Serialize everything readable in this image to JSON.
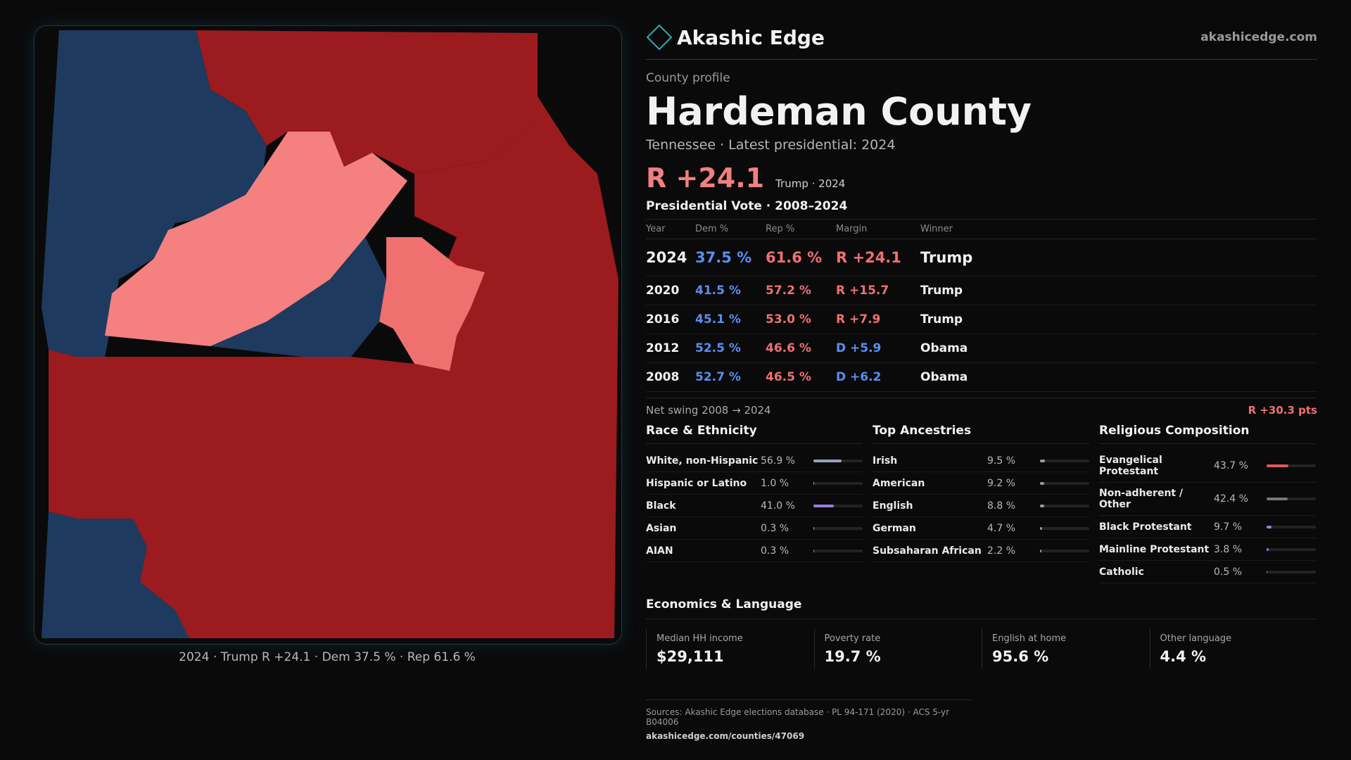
{
  "map": {
    "caption": "2024 · Trump R +24.1 · Dem 37.5 % · Rep 61.6 %",
    "colors": {
      "strong_dem": "#1e3a5f",
      "strong_rep": "#9b1b1e",
      "lean_rep": "#f48080",
      "mid_rep": "#f07070"
    }
  },
  "header": {
    "brand": "Akashic Edge",
    "site": "akashicedge.com",
    "logo_icon": "diamond-icon"
  },
  "profile": {
    "eyebrow": "County profile",
    "county": "Hardeman County",
    "subline": "Tennessee · Latest presidential: 2024",
    "margin": "R +24.1",
    "margin_sub": "Trump · 2024"
  },
  "votes": {
    "title": "Presidential Vote · 2008–2024",
    "headers": [
      "Year",
      "Dem %",
      "Rep %",
      "Margin",
      "Winner"
    ],
    "rows": [
      {
        "year": "2024",
        "dem": "37.5 %",
        "rep": "61.6 %",
        "margin": "R +24.1",
        "winner": "Trump"
      },
      {
        "year": "2020",
        "dem": "41.5 %",
        "rep": "57.2 %",
        "margin": "R +15.7",
        "winner": "Trump"
      },
      {
        "year": "2016",
        "dem": "45.1 %",
        "rep": "53.0 %",
        "margin": "R +7.9",
        "winner": "Trump"
      },
      {
        "year": "2012",
        "dem": "52.5 %",
        "rep": "46.6 %",
        "margin": "D +5.9",
        "winner": "Obama"
      },
      {
        "year": "2008",
        "dem": "52.7 %",
        "rep": "46.5 %",
        "margin": "D +6.2",
        "winner": "Obama"
      }
    ],
    "swing_label": "Net swing 2008 → 2024",
    "swing_value": "R +30.3 pts"
  },
  "race": {
    "title": "Race & Ethnicity",
    "items": [
      {
        "label": "White, non-Hispanic",
        "value": "56.9 %",
        "pct": 56.9,
        "color": "#9aa0b8"
      },
      {
        "label": "Hispanic or Latino",
        "value": "1.0 %",
        "pct": 1.0,
        "color": "#c8a040"
      },
      {
        "label": "Black",
        "value": "41.0 %",
        "pct": 41.0,
        "color": "#9a7be0"
      },
      {
        "label": "Asian",
        "value": "0.3 %",
        "pct": 0.3,
        "color": "#6cc0a0"
      },
      {
        "label": "AIAN",
        "value": "0.3 %",
        "pct": 0.3,
        "color": "#808080"
      }
    ]
  },
  "ancestry": {
    "title": "Top Ancestries",
    "items": [
      {
        "label": "Irish",
        "value": "9.5 %",
        "pct": 9.5,
        "color": "#9a9a9a"
      },
      {
        "label": "American",
        "value": "9.2 %",
        "pct": 9.2,
        "color": "#9a9a9a"
      },
      {
        "label": "English",
        "value": "8.8 %",
        "pct": 8.8,
        "color": "#9a9a9a"
      },
      {
        "label": "German",
        "value": "4.7 %",
        "pct": 4.7,
        "color": "#9a9a9a"
      },
      {
        "label": "Subsaharan African",
        "value": "2.2 %",
        "pct": 2.2,
        "color": "#9a9a9a"
      }
    ]
  },
  "religion": {
    "title": "Religious Composition",
    "items": [
      {
        "label": "Evangelical Protestant",
        "value": "43.7 %",
        "pct": 43.7,
        "color": "#e05a5a"
      },
      {
        "label": "Non-adherent / Other",
        "value": "42.4 %",
        "pct": 42.4,
        "color": "#777"
      },
      {
        "label": "Black Protestant",
        "value": "9.7 %",
        "pct": 9.7,
        "color": "#9a7be0"
      },
      {
        "label": "Mainline Protestant",
        "value": "3.8 %",
        "pct": 3.8,
        "color": "#5b8ef0"
      },
      {
        "label": "Catholic",
        "value": "0.5 %",
        "pct": 0.5,
        "color": "#777"
      }
    ]
  },
  "econ": {
    "title": "Economics & Language",
    "items": [
      {
        "label": "Median HH income",
        "value": "$29,111"
      },
      {
        "label": "Poverty rate",
        "value": "19.7 %"
      },
      {
        "label": "English at home",
        "value": "95.6 %"
      },
      {
        "label": "Other language",
        "value": "4.4 %"
      }
    ]
  },
  "sources": {
    "text": "Sources: Akashic Edge elections database · PL 94-171 (2020) · ACS 5-yr B04006",
    "url": "akashicedge.com/counties/47069"
  }
}
